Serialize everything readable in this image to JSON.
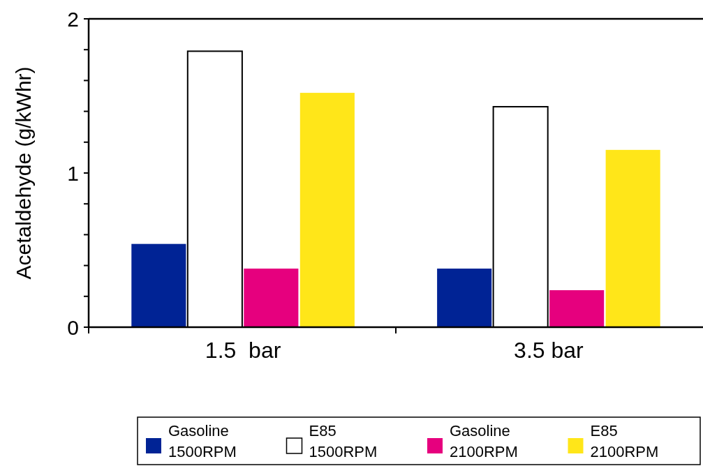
{
  "chart_data": {
    "type": "bar",
    "ylabel": "Acetaldehyde (g/kWhr)",
    "categories": [
      "1.5  bar",
      "3.5 bar"
    ],
    "series": [
      {
        "name": "Gasoline\n1500RPM",
        "color": "#002395",
        "values": [
          0.54,
          0.38
        ]
      },
      {
        "name": "E85\n1500RPM",
        "color": "#ffffff",
        "values": [
          1.79,
          1.43
        ]
      },
      {
        "name": "Gasoline\n2100RPM",
        "color": "#e6007e",
        "values": [
          0.38,
          0.24
        ]
      },
      {
        "name": "E85\n2100RPM",
        "color": "#ffe619",
        "values": [
          1.52,
          1.15
        ]
      }
    ],
    "ylim": [
      0,
      2
    ],
    "yticks": [
      0,
      {
        "value": 0.2,
        "label": null
      },
      {
        "value": 0.4,
        "label": null
      },
      {
        "value": 0.6,
        "label": null
      },
      {
        "value": 0.8,
        "label": null
      },
      1,
      {
        "value": 1.2,
        "label": null
      },
      {
        "value": 1.4,
        "label": null
      },
      {
        "value": 1.6,
        "label": null
      },
      {
        "value": 1.8,
        "label": null
      },
      2
    ],
    "grid": false,
    "legend": "bottom"
  }
}
